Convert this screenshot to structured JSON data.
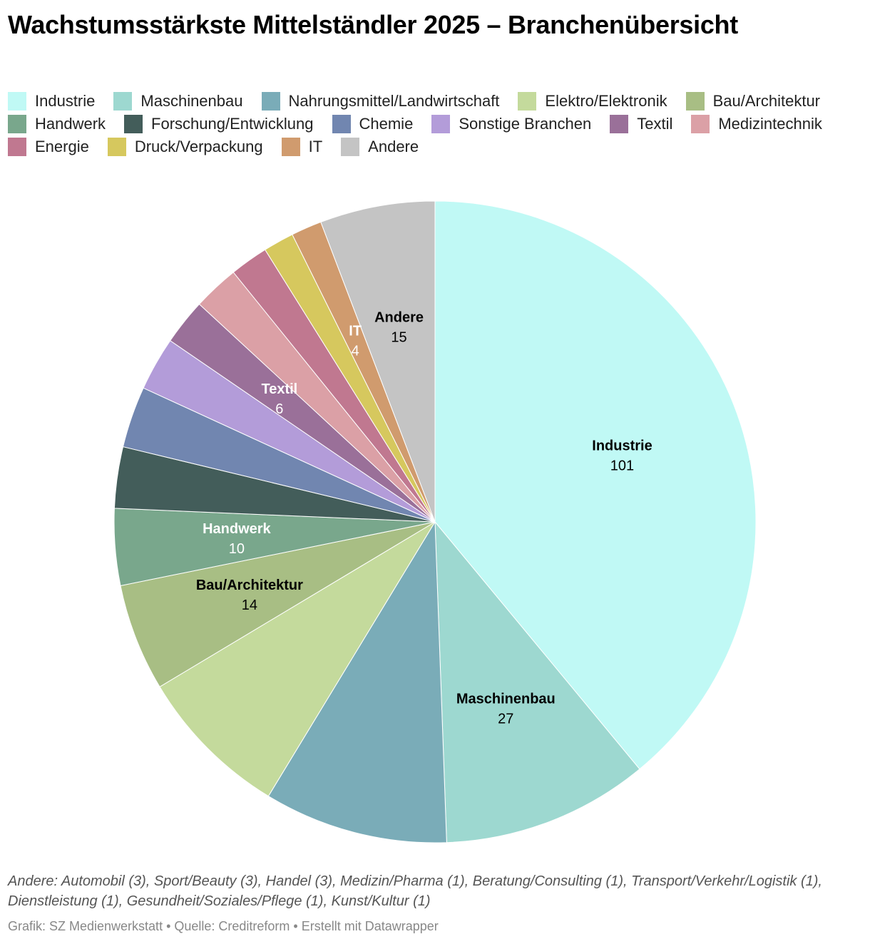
{
  "title": "Wachstumsstärkste Mittelständler 2025 – Branchenübersicht",
  "note": "Andere: Automobil (3), Sport/Beauty (3), Handel (3), Medizin/Pharma (1), Beratung/Consulting (1), Transport/Verkehr/Logistik (1), Dienstleistung (1), Gesundheit/Soziales/Pflege (1), Kunst/Kultur (1)",
  "credit": "Grafik: SZ Medienwerkstatt • Quelle: Creditreform • Erstellt mit Datawrapper",
  "chart_data": {
    "type": "pie",
    "title": "Wachstumsstärkste Mittelständler 2025 – Branchenübersicht",
    "legend_position": "top",
    "slices": [
      {
        "name": "Industrie",
        "value": 101,
        "color": "#c0f9f5",
        "labeled": true,
        "label_color": "#000000"
      },
      {
        "name": "Maschinenbau",
        "value": 27,
        "color": "#9dd8d0",
        "labeled": true,
        "label_color": "#000000"
      },
      {
        "name": "Nahrungsmittel/Landwirtschaft",
        "value": 24,
        "color": "#7aacb8",
        "labeled": false,
        "label_color": "#000000"
      },
      {
        "name": "Elektro/Elektronik",
        "value": 20,
        "color": "#c4da9c",
        "labeled": false,
        "label_color": "#000000"
      },
      {
        "name": "Bau/Architektur",
        "value": 14,
        "color": "#a8be84",
        "labeled": true,
        "label_color": "#000000"
      },
      {
        "name": "Handwerk",
        "value": 10,
        "color": "#79a78c",
        "labeled": true,
        "label_color": "#ffffff"
      },
      {
        "name": "Forschung/Entwicklung",
        "value": 8,
        "color": "#435d5a",
        "labeled": false,
        "label_color": "#ffffff"
      },
      {
        "name": "Chemie",
        "value": 8,
        "color": "#7186b0",
        "labeled": false,
        "label_color": "#ffffff"
      },
      {
        "name": "Sonstige Branchen",
        "value": 7,
        "color": "#b39cd9",
        "labeled": false,
        "label_color": "#000000"
      },
      {
        "name": "Textil",
        "value": 6,
        "color": "#9a7099",
        "labeled": true,
        "label_color": "#ffffff"
      },
      {
        "name": "Medizintechnik",
        "value": 6,
        "color": "#dba0a6",
        "labeled": false,
        "label_color": "#000000"
      },
      {
        "name": "Energie",
        "value": 5,
        "color": "#c07890",
        "labeled": false,
        "label_color": "#ffffff"
      },
      {
        "name": "Druck/Verpackung",
        "value": 4,
        "color": "#d6c85e",
        "labeled": false,
        "label_color": "#000000"
      },
      {
        "name": "IT",
        "value": 4,
        "color": "#d09b6e",
        "labeled": true,
        "label_color": "#ffffff"
      },
      {
        "name": "Andere",
        "value": 15,
        "color": "#c4c4c4",
        "labeled": true,
        "label_color": "#000000"
      }
    ]
  }
}
